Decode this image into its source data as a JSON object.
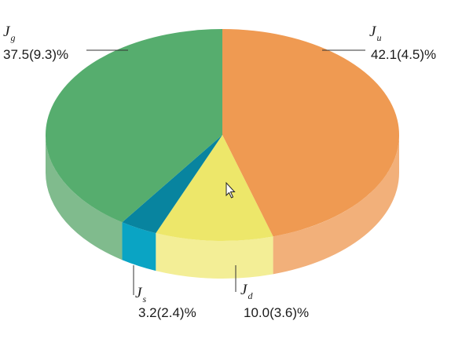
{
  "chart_data": {
    "type": "pie",
    "style": "3d",
    "start_angle_deg": 0,
    "direction": "clockwise",
    "slices": [
      {
        "key": "u",
        "symbol": "J",
        "subscript": "u",
        "value": 42.1,
        "label": "42.1(4.5)%",
        "color_top": "#ef9a52",
        "color_side": "#f2b07a"
      },
      {
        "key": "d",
        "symbol": "J",
        "subscript": "d",
        "value": 10.0,
        "label": "10.0(3.6)%",
        "color_top": "#ede76a",
        "color_side": "#f3ee96"
      },
      {
        "key": "s",
        "symbol": "J",
        "subscript": "s",
        "value": 3.2,
        "label": "3.2(2.4)%",
        "color_top": "#08849f",
        "color_side": "#0aa4c4"
      },
      {
        "key": "g",
        "symbol": "J",
        "subscript": "g",
        "value": 37.5,
        "label": "37.5(9.3)%",
        "color_top": "#56ad6e",
        "color_side": "#80bb8d"
      }
    ]
  },
  "cursor_icon": "pointer-arrow-icon"
}
